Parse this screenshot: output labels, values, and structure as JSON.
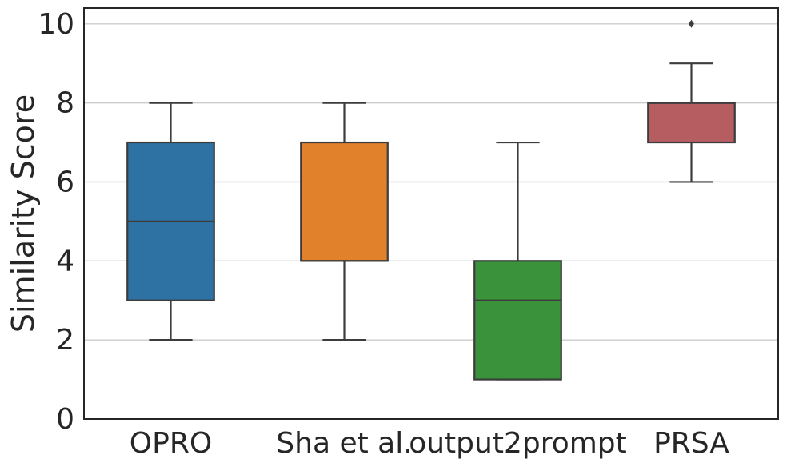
{
  "chart_data": {
    "type": "box",
    "ylabel": "Similarity Score",
    "xlabel": "",
    "ylim": [
      0,
      10.4
    ],
    "yticks": [
      0,
      2,
      4,
      6,
      8,
      10
    ],
    "grid": "horizontal",
    "categories": [
      "OPRO",
      "Sha et al.",
      "output2prompt",
      "PRSA"
    ],
    "boxes": [
      {
        "name": "OPRO",
        "color": "#2e72a3",
        "whisker_low": 2,
        "q1": 3,
        "median": 5,
        "q3": 7,
        "whisker_high": 8,
        "outliers": []
      },
      {
        "name": "Sha et al.",
        "color": "#e1812c",
        "whisker_low": 2,
        "q1": 4,
        "median": 4,
        "q3": 7,
        "whisker_high": 8,
        "outliers": []
      },
      {
        "name": "output2prompt",
        "color": "#3a923a",
        "whisker_low": 1,
        "q1": 1,
        "median": 3,
        "q3": 4,
        "whisker_high": 7,
        "outliers": []
      },
      {
        "name": "PRSA",
        "color": "#b55d60",
        "whisker_low": 6,
        "q1": 7,
        "median": 8,
        "q3": 8,
        "whisker_high": 9,
        "outliers": [
          10
        ]
      }
    ]
  }
}
